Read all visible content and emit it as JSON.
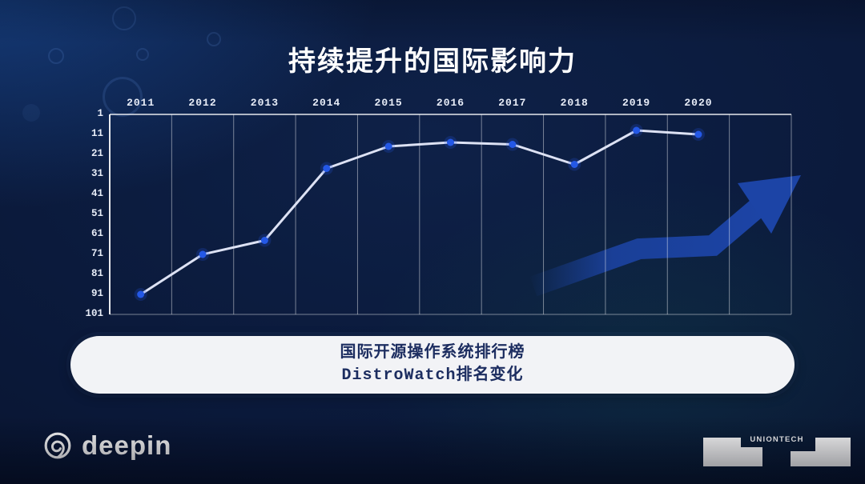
{
  "slide": {
    "title": "持续提升的国际影响力"
  },
  "chart_data": {
    "type": "line",
    "categories": [
      "2011",
      "2012",
      "2013",
      "2014",
      "2015",
      "2016",
      "2017",
      "2018",
      "2019",
      "2020"
    ],
    "series": [
      {
        "name": "DistroWatch排名",
        "values": [
          91,
          71,
          64,
          28,
          17,
          15,
          16,
          26,
          9,
          11
        ]
      }
    ],
    "y_ticks": [
      1,
      11,
      21,
      31,
      41,
      51,
      61,
      71,
      81,
      91,
      101
    ],
    "ylim": [
      1,
      101
    ],
    "y_inverted": true,
    "grid": "vertical",
    "legend": "none",
    "xlabel": "",
    "ylabel": ""
  },
  "caption": {
    "line1": "国际开源操作系统排行榜",
    "line2": "DistroWatch排名变化"
  },
  "footer": {
    "deepin": "deepin",
    "uniontech": "UNIONTECH"
  },
  "colors": {
    "background": "#0a1838",
    "line": "#dde2f4",
    "point": "#2458e6",
    "grid": "rgba(255,255,255,0.45)",
    "axis": "rgba(255,255,255,0.9)",
    "arrow": "#1c44a6",
    "caption_text": "#1c2d60",
    "caption_bg": "#f2f3f6"
  }
}
